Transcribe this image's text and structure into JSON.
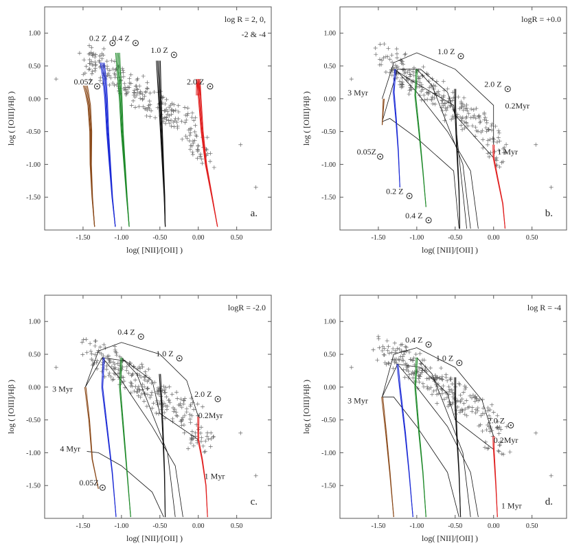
{
  "figure": {
    "description_labels": "four BPT-style diagnostic panels"
  },
  "colors": {
    "frame": "#555555",
    "data_point": "#666666",
    "z005": "#8b4a1a",
    "z02": "#1c2bd6",
    "z04": "#1f8a2a",
    "z10": "#111111",
    "z20": "#e02020",
    "grid_line": "#111111"
  },
  "chart_data": [
    {
      "type": "scatter",
      "panel_label": "a.",
      "legend_text": "log R = 2, 0,",
      "legend_text2": "-2  & -4",
      "xlabel": "log( [NII]/[OII] )",
      "ylabel": "log ( [OIII]/Hβ )",
      "xlim": [
        -2.0,
        0.95
      ],
      "ylim": [
        -2.0,
        1.4
      ],
      "xticks": [
        "-1.50",
        "-1.00",
        "-0.50",
        "0.00",
        "0.50"
      ],
      "yticks": [
        "1.00",
        "0.50",
        "0.00",
        "-0.50",
        "-1.00",
        "-1.50"
      ],
      "annotations": [
        {
          "text": "0.2 Z",
          "x": -1.42,
          "y": 0.88
        },
        {
          "text": "0.4 Z",
          "x": -1.12,
          "y": 0.88
        },
        {
          "text": "1.0 Z",
          "x": -0.62,
          "y": 0.7
        },
        {
          "text": "2.0 Z",
          "x": -0.15,
          "y": 0.22
        },
        {
          "text": "0.05Z",
          "x": -1.62,
          "y": 0.22
        }
      ],
      "tracks": [
        {
          "metal": "0.05",
          "color": "#8b4a1a",
          "x": [
            -1.35,
            -1.38,
            -1.4,
            -1.4,
            -1.42,
            -1.45,
            -1.47
          ],
          "y": [
            -1.95,
            -1.5,
            -1.0,
            -0.5,
            -0.1,
            0.1,
            0.2
          ]
        },
        {
          "metal": "0.2",
          "color": "#1c2bd6",
          "x": [
            -1.08,
            -1.12,
            -1.15,
            -1.18,
            -1.2,
            -1.22,
            -1.25
          ],
          "y": [
            -1.95,
            -1.5,
            -1.0,
            -0.5,
            0.0,
            0.3,
            0.55
          ]
        },
        {
          "metal": "0.4",
          "color": "#1f8a2a",
          "x": [
            -0.9,
            -0.93,
            -0.96,
            -0.99,
            -1.01,
            -1.03,
            -1.05
          ],
          "y": [
            -1.95,
            -1.5,
            -1.0,
            -0.5,
            0.0,
            0.35,
            0.7
          ]
        },
        {
          "metal": "1.0",
          "color": "#111111",
          "x": [
            -0.43,
            -0.44,
            -0.46,
            -0.48,
            -0.5,
            -0.51,
            -0.52
          ],
          "y": [
            -1.95,
            -1.5,
            -1.0,
            -0.5,
            0.0,
            0.3,
            0.58
          ]
        },
        {
          "metal": "2.0",
          "color": "#e02020",
          "x": [
            0.25,
            0.18,
            0.1,
            0.05,
            0.02,
            0.0,
            0.0
          ],
          "y": [
            -1.95,
            -1.5,
            -1.0,
            -0.5,
            0.0,
            0.3,
            0.05
          ]
        }
      ],
      "extra_lines": []
    },
    {
      "type": "scatter",
      "panel_label": "b.",
      "legend_text": "logR = +0.0",
      "legend_text2": "",
      "xlabel": "log( [NII]/[OII] )",
      "ylabel": "log ( [OIII]/Hβ )",
      "xlim": [
        -2.0,
        0.95
      ],
      "ylim": [
        -2.0,
        1.4
      ],
      "xticks": [
        "-1.50",
        "-1.00",
        "-0.50",
        "0.00",
        "0.50"
      ],
      "yticks": [
        "1.00",
        "0.50",
        "0.00",
        "-0.50",
        "-1.00",
        "-1.50"
      ],
      "annotations": [
        {
          "text": "1.0 Z",
          "x": -0.73,
          "y": 0.68
        },
        {
          "text": "2.0 Z",
          "x": -0.12,
          "y": 0.18
        },
        {
          "text": "3 Myr",
          "x": -1.9,
          "y": 0.05
        },
        {
          "text": "0.2Myr",
          "x": 0.15,
          "y": -0.15
        },
        {
          "text": "0.05Z",
          "x": -1.78,
          "y": -0.85
        },
        {
          "text": "1 Myr",
          "x": 0.05,
          "y": -0.85
        },
        {
          "text": "0.2 Z",
          "x": -1.4,
          "y": -1.45
        },
        {
          "text": "0.4 Z",
          "x": -1.15,
          "y": -1.82
        }
      ],
      "tracks": [
        {
          "metal": "0.05",
          "color": "#8b4a1a",
          "x": [
            -1.45,
            -1.44,
            -1.43
          ],
          "y": [
            -0.4,
            -0.2,
            0.0
          ]
        },
        {
          "metal": "0.2",
          "color": "#1c2bd6",
          "x": [
            -1.22,
            -1.24,
            -1.27,
            -1.3,
            -1.28
          ],
          "y": [
            -1.35,
            -0.8,
            -0.3,
            0.1,
            0.45
          ]
        },
        {
          "metal": "0.4",
          "color": "#1f8a2a",
          "x": [
            -0.88,
            -0.92,
            -0.97,
            -1.02,
            -1.0
          ],
          "y": [
            -1.65,
            -1.1,
            -0.5,
            0.05,
            0.45
          ]
        },
        {
          "metal": "1.0",
          "color": "#111111",
          "x": [
            -0.44,
            -0.45,
            -0.48,
            -0.5,
            -0.5
          ],
          "y": [
            -1.98,
            -1.4,
            -0.7,
            -0.1,
            0.15
          ]
        },
        {
          "metal": "2.0",
          "color": "#e02020",
          "x": [
            0.15,
            0.12,
            0.05,
            0.0,
            0.0
          ],
          "y": [
            -1.98,
            -1.6,
            -1.2,
            -0.9,
            -0.7
          ]
        }
      ],
      "extra_lines": [
        {
          "x": [
            -1.45,
            -1.3,
            -1.0,
            -0.5,
            0.0,
            0.0
          ],
          "y": [
            0.0,
            0.55,
            0.7,
            0.45,
            -0.1,
            -0.7
          ]
        },
        {
          "x": [
            -1.45,
            -1.25,
            -0.95,
            -0.6,
            -0.5,
            0.0
          ],
          "y": [
            -0.35,
            0.45,
            0.45,
            0.1,
            -0.25,
            -0.9
          ]
        },
        {
          "x": [
            -1.45,
            -1.35,
            -1.0,
            -0.52,
            -0.45
          ],
          "y": [
            -0.35,
            -0.3,
            -0.6,
            -1.1,
            -1.98
          ]
        },
        {
          "x": [
            -1.28,
            -1.0,
            -0.6,
            -0.3,
            -0.2
          ],
          "y": [
            0.45,
            0.1,
            -0.5,
            -1.1,
            -1.98
          ]
        },
        {
          "x": [
            -1.0,
            -0.8,
            -0.4,
            -0.3
          ],
          "y": [
            0.45,
            0.2,
            -1.0,
            -1.98
          ]
        },
        {
          "x": [
            -1.3,
            -1.1,
            -0.52,
            -0.35
          ],
          "y": [
            0.45,
            0.3,
            -0.1,
            -1.98
          ]
        }
      ]
    },
    {
      "type": "scatter",
      "panel_label": "c.",
      "legend_text": "logR = -2.0",
      "legend_text2": "",
      "xlabel": "log( [NII]/[OII] )",
      "ylabel": "log ( [OIII]/Hβ )",
      "xlim": [
        -2.0,
        0.95
      ],
      "ylim": [
        -2.0,
        1.4
      ],
      "xticks": [
        "-1.50",
        "-1.00",
        "-0.50",
        "0.00",
        "0.50"
      ],
      "yticks": [
        "1.00",
        "0.50",
        "0.00",
        "-0.50",
        "-1.00",
        "-1.50"
      ],
      "annotations": [
        {
          "text": "0.4 Z",
          "x": -1.05,
          "y": 0.8
        },
        {
          "text": "1.0 Z",
          "x": -0.55,
          "y": 0.47
        },
        {
          "text": "3 Myr",
          "x": -1.9,
          "y": -0.07
        },
        {
          "text": "2.0 Z",
          "x": -0.05,
          "y": -0.15
        },
        {
          "text": "0.2Myr",
          "x": 0.0,
          "y": -0.47
        },
        {
          "text": "4 Myr",
          "x": -1.8,
          "y": -0.98
        },
        {
          "text": "1 Myr",
          "x": 0.08,
          "y": -1.4
        },
        {
          "text": "0.05Z",
          "x": -1.55,
          "y": -1.5
        }
      ],
      "tracks": [
        {
          "metal": "0.05",
          "color": "#8b4a1a",
          "x": [
            -1.3,
            -1.38,
            -1.42,
            -1.47
          ],
          "y": [
            -1.55,
            -1.1,
            -0.5,
            0.0
          ]
        },
        {
          "metal": "0.2",
          "color": "#1c2bd6",
          "x": [
            -1.07,
            -1.12,
            -1.18,
            -1.25,
            -1.23
          ],
          "y": [
            -1.98,
            -1.3,
            -0.7,
            0.0,
            0.45
          ]
        },
        {
          "metal": "0.4",
          "color": "#1f8a2a",
          "x": [
            -0.88,
            -0.92,
            -0.97,
            -1.02,
            -1.0
          ],
          "y": [
            -1.98,
            -1.4,
            -0.7,
            0.0,
            0.45
          ]
        },
        {
          "metal": "1.0",
          "color": "#111111",
          "x": [
            -0.43,
            -0.44,
            -0.46,
            -0.48,
            -0.5
          ],
          "y": [
            -1.98,
            -1.3,
            -0.7,
            -0.2,
            0.2
          ]
        },
        {
          "metal": "2.0",
          "color": "#e02020",
          "x": [
            0.12,
            0.1,
            0.05,
            0.0,
            0.0
          ],
          "y": [
            -1.98,
            -1.5,
            -1.1,
            -0.8,
            -0.45
          ]
        }
      ],
      "extra_lines": [
        {
          "x": [
            -1.47,
            -1.3,
            -1.0,
            -0.5,
            -0.15,
            0.0
          ],
          "y": [
            0.0,
            0.55,
            0.68,
            0.5,
            0.1,
            -0.45
          ]
        },
        {
          "x": [
            -1.47,
            -1.25,
            -0.95,
            -0.6,
            -0.5,
            0.0
          ],
          "y": [
            0.0,
            0.45,
            0.4,
            0.1,
            -0.4,
            -0.8
          ]
        },
        {
          "x": [
            -1.45,
            -1.3,
            -1.0,
            -0.6,
            -0.45
          ],
          "y": [
            -0.98,
            -1.0,
            -1.2,
            -1.6,
            -1.98
          ]
        },
        {
          "x": [
            -1.25,
            -1.0,
            -0.6,
            -0.3,
            -0.2
          ],
          "y": [
            0.45,
            0.1,
            -0.6,
            -1.2,
            -1.98
          ]
        },
        {
          "x": [
            -1.0,
            -0.8,
            -0.4,
            -0.3
          ],
          "y": [
            0.45,
            0.2,
            -1.0,
            -1.98
          ]
        }
      ]
    },
    {
      "type": "scatter",
      "panel_label": "d.",
      "legend_text": "log R = -4",
      "legend_text2": "",
      "xlabel": "log( [NII]/[OII] )",
      "ylabel": "log ( [OIII]/Hβ )",
      "xlim": [
        -2.0,
        0.95
      ],
      "ylim": [
        -2.0,
        1.4
      ],
      "xticks": [
        "-1.50",
        "-1.00",
        "-0.50",
        "0.00",
        "0.50"
      ],
      "yticks": [
        "1.00",
        "0.50",
        "0.00",
        "-0.50",
        "-1.00",
        "-1.50"
      ],
      "annotations": [
        {
          "text": "0.4 Z",
          "x": -1.15,
          "y": 0.68
        },
        {
          "text": "1.0 Z",
          "x": -0.75,
          "y": 0.4
        },
        {
          "text": "3 Myr",
          "x": -1.9,
          "y": -0.25
        },
        {
          "text": "2.0 Z",
          "x": -0.08,
          "y": -0.55
        },
        {
          "text": "0.2Myr",
          "x": 0.0,
          "y": -0.85
        },
        {
          "text": "1 Myr",
          "x": 0.1,
          "y": -1.85
        }
      ],
      "tracks": [
        {
          "metal": "0.05",
          "color": "#8b4a1a",
          "x": [
            -1.3,
            -1.35,
            -1.4,
            -1.45
          ],
          "y": [
            -1.98,
            -1.3,
            -0.7,
            -0.15
          ]
        },
        {
          "metal": "0.2",
          "color": "#1c2bd6",
          "x": [
            -1.05,
            -1.1,
            -1.15,
            -1.22,
            -1.25
          ],
          "y": [
            -1.98,
            -1.3,
            -0.7,
            0.0,
            0.35
          ]
        },
        {
          "metal": "0.4",
          "color": "#1f8a2a",
          "x": [
            -0.88,
            -0.92,
            -0.97,
            -1.02,
            -1.0
          ],
          "y": [
            -1.98,
            -1.3,
            -0.7,
            0.0,
            0.45
          ]
        },
        {
          "metal": "1.0",
          "color": "#111111",
          "x": [
            -0.43,
            -0.45,
            -0.48,
            -0.5,
            -0.5
          ],
          "y": [
            -1.98,
            -1.3,
            -0.7,
            -0.2,
            0.15
          ]
        },
        {
          "metal": "2.0",
          "color": "#e02020",
          "x": [
            0.05,
            0.03,
            0.01,
            0.0,
            0.0
          ],
          "y": [
            -1.98,
            -1.5,
            -1.1,
            -0.9,
            -0.75
          ]
        }
      ],
      "extra_lines": [
        {
          "x": [
            -1.45,
            -1.3,
            -1.0,
            -0.5,
            -0.15,
            0.0
          ],
          "y": [
            -0.15,
            0.5,
            0.6,
            0.3,
            -0.2,
            -0.75
          ]
        },
        {
          "x": [
            -1.45,
            -1.25,
            -0.95,
            -0.6,
            -0.5,
            0.0
          ],
          "y": [
            -0.15,
            0.35,
            0.3,
            -0.1,
            -0.5,
            -0.95
          ]
        },
        {
          "x": [
            -1.45,
            -1.3,
            -1.0,
            -0.6,
            -0.45
          ],
          "y": [
            -0.15,
            -0.15,
            -0.6,
            -1.3,
            -1.98
          ]
        },
        {
          "x": [
            -1.25,
            -1.0,
            -0.6,
            -0.3,
            -0.2
          ],
          "y": [
            0.35,
            0.0,
            -0.6,
            -1.3,
            -1.98
          ]
        },
        {
          "x": [
            -1.0,
            -0.8,
            -0.4,
            -0.3
          ],
          "y": [
            0.45,
            0.2,
            -1.0,
            -1.98
          ]
        }
      ]
    }
  ]
}
